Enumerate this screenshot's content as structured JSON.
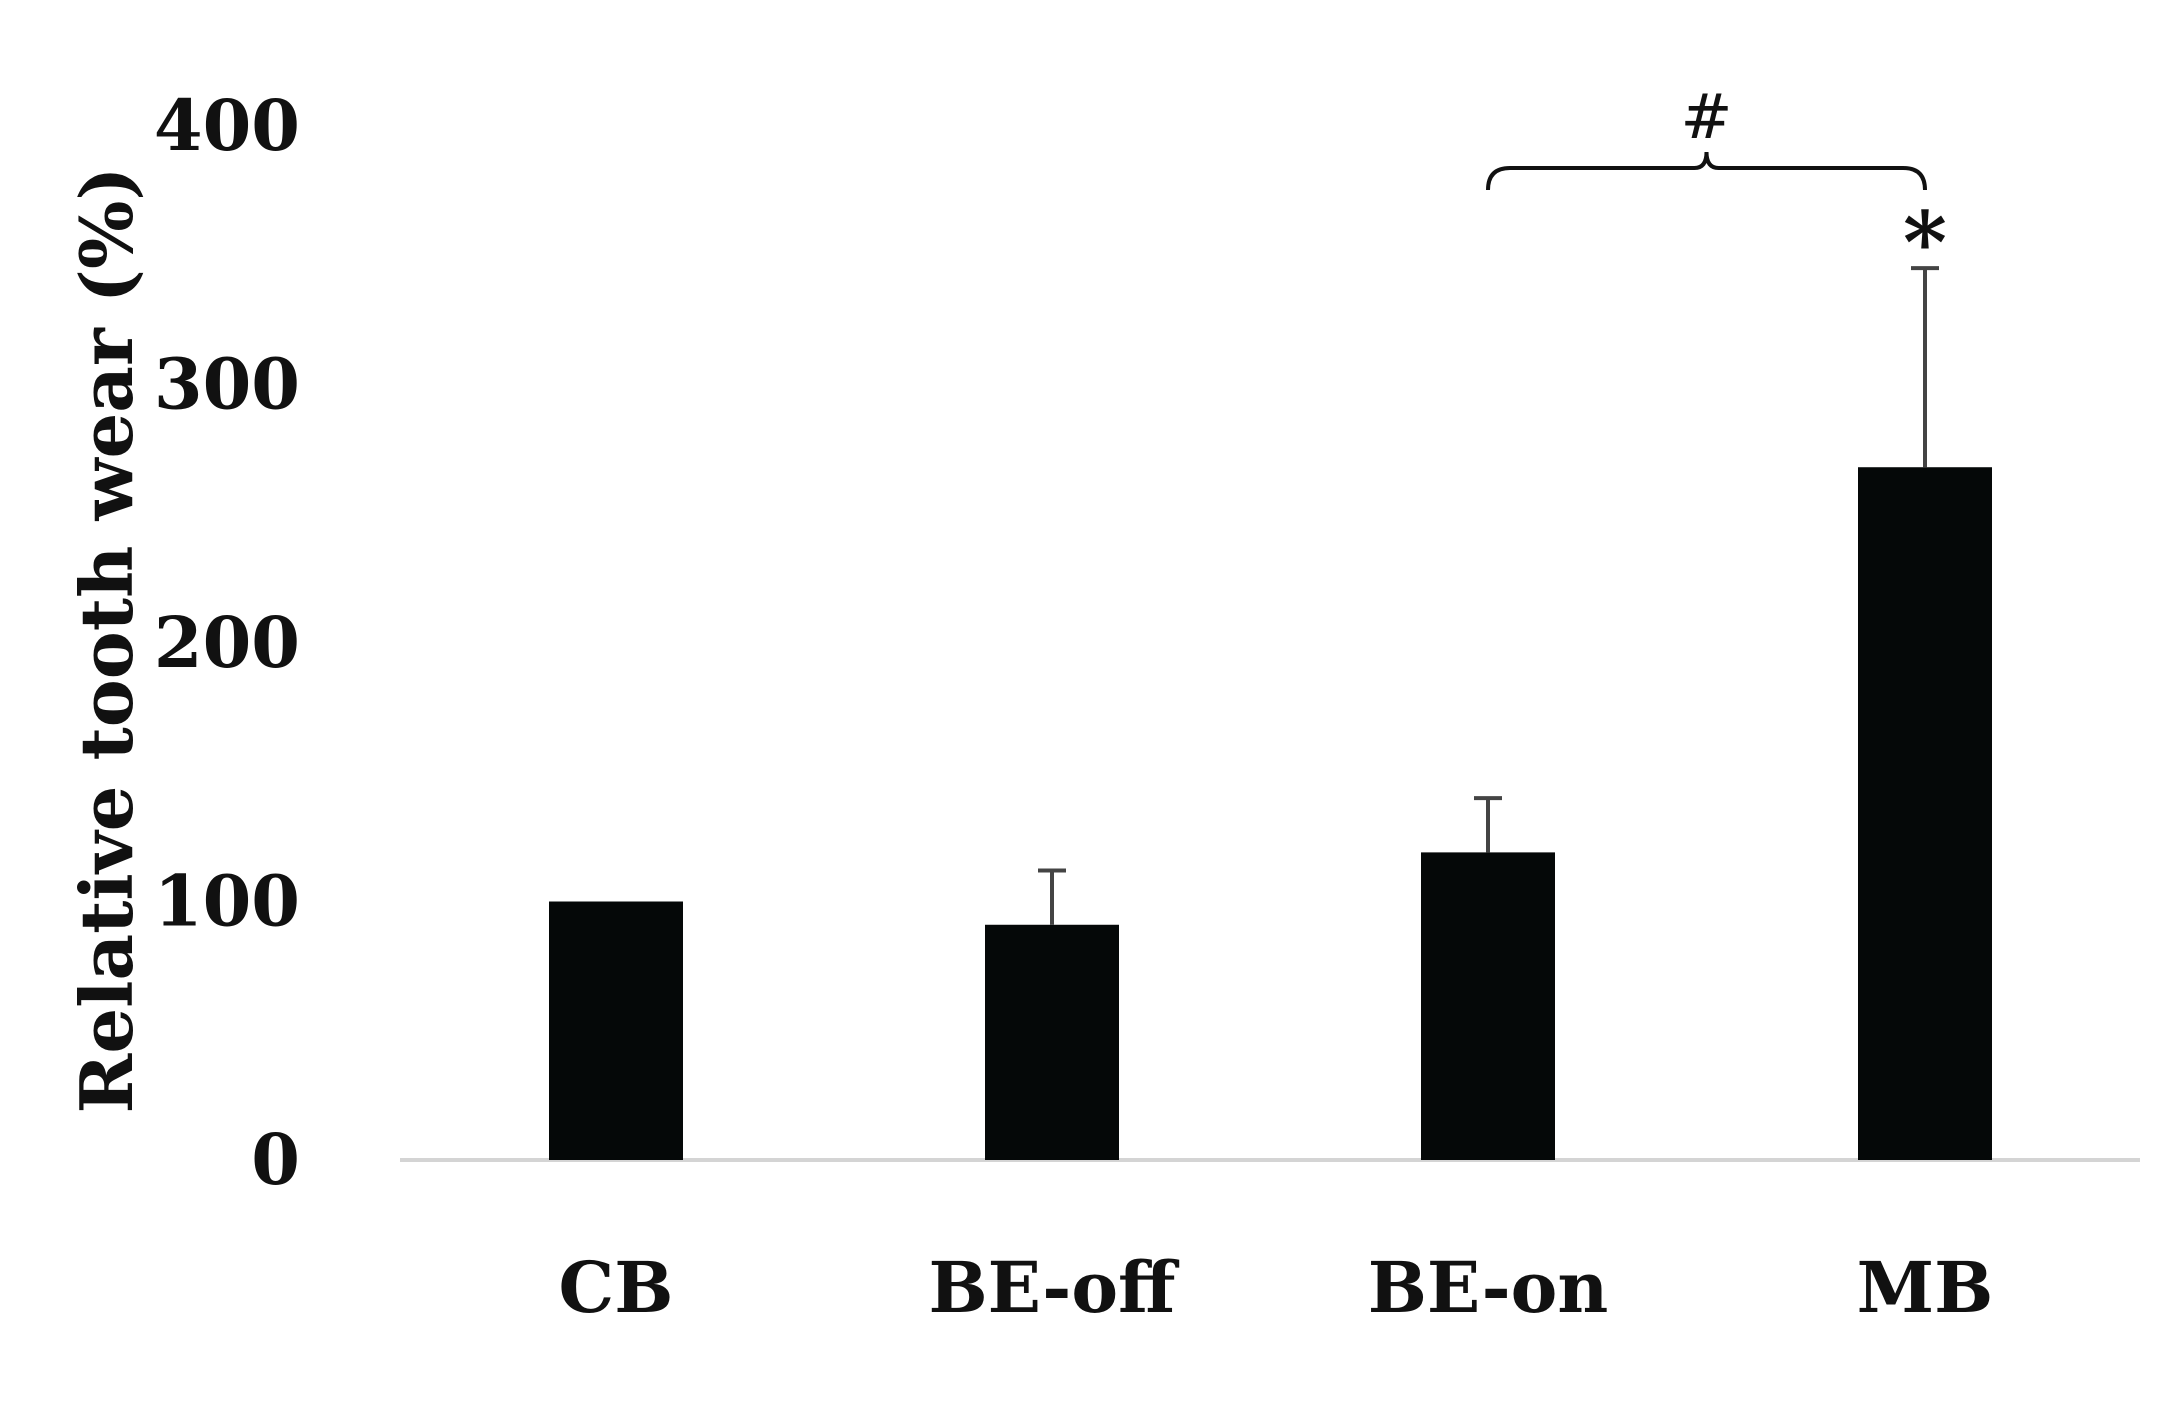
{
  "chart_data": {
    "type": "bar",
    "title": "",
    "xlabel": "",
    "ylabel": "Relative tooth wear (%)",
    "categories": [
      "CB",
      "BE-off",
      "BE-on",
      "MB"
    ],
    "values": [
      100,
      91,
      119,
      268
    ],
    "error_upper": [
      0,
      21,
      21,
      77
    ],
    "ylim": [
      0,
      400
    ],
    "yticks": [
      0,
      100,
      200,
      300,
      400
    ],
    "grid": false,
    "legend": "none",
    "bar_color": "#050808",
    "annotations": {
      "bracket_label": "#",
      "bracket_from": "BE-on",
      "bracket_to": "MB",
      "star_label": "*",
      "star_on": "MB"
    }
  }
}
